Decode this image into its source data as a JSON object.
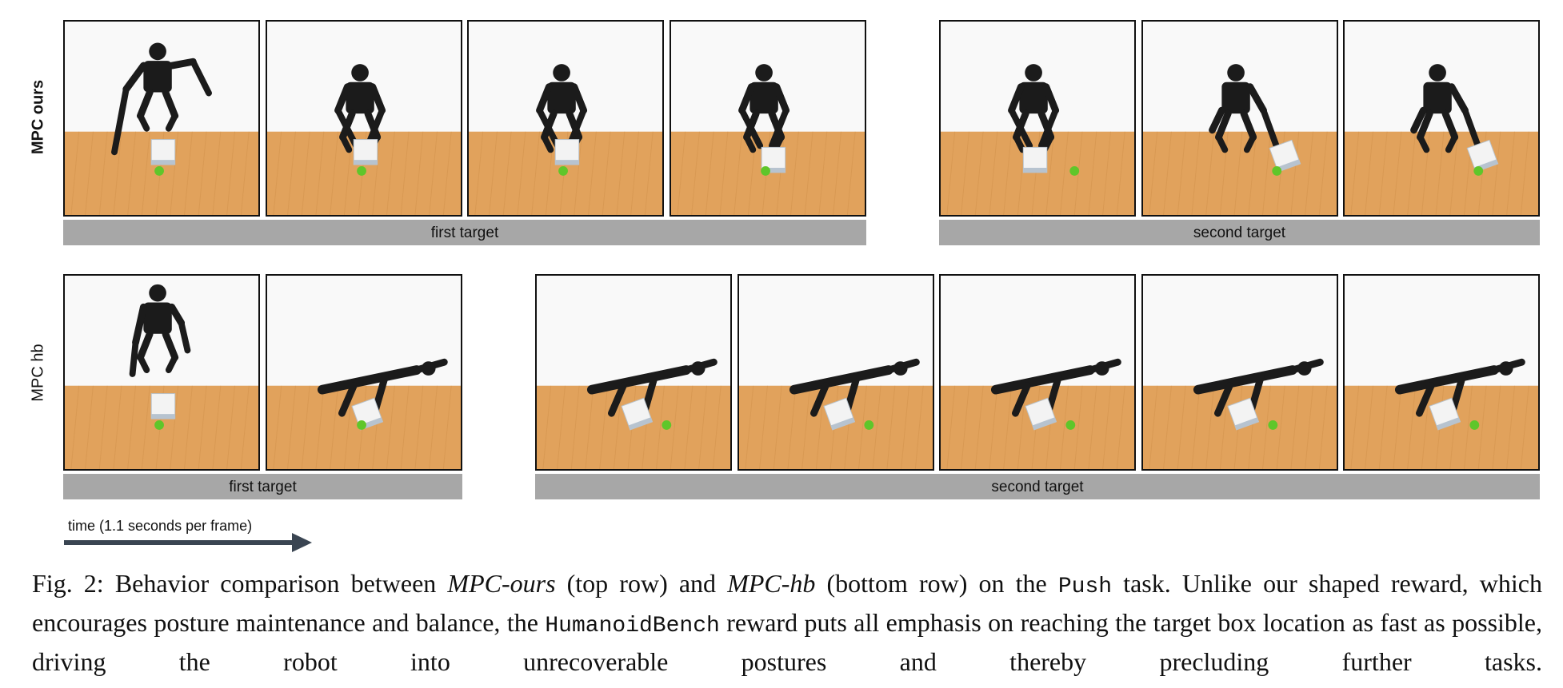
{
  "rows": [
    {
      "label": "MPC ours",
      "groups": [
        {
          "bar_label": "first target",
          "frames": [
            {
              "robot": "standing-arms-out",
              "box": "near"
            },
            {
              "robot": "crouch-reach",
              "box": "near"
            },
            {
              "robot": "crouch-reach",
              "box": "near"
            },
            {
              "robot": "lean-push",
              "box": "pushed"
            }
          ]
        },
        {
          "bar_label": "second target",
          "frames": [
            {
              "robot": "lean-push",
              "box": "left-of-ball"
            },
            {
              "robot": "side-push",
              "box": "right-of-ball"
            },
            {
              "robot": "side-push",
              "box": "far-right"
            }
          ]
        }
      ]
    },
    {
      "label": "MPC hb",
      "groups": [
        {
          "bar_label": "first target",
          "frames": [
            {
              "robot": "standing-tall",
              "box": "near"
            },
            {
              "robot": "fallen",
              "box": "tilted"
            }
          ]
        },
        {
          "bar_label": "second target",
          "frames": [
            {
              "robot": "fallen",
              "box": "tilted"
            },
            {
              "robot": "fallen",
              "box": "tilted"
            },
            {
              "robot": "fallen",
              "box": "tilted"
            },
            {
              "robot": "fallen",
              "box": "tilted"
            },
            {
              "robot": "fallen",
              "box": "tilted"
            }
          ]
        }
      ]
    }
  ],
  "time_label": "time (1.1 seconds per frame)",
  "caption": {
    "prefix": "Fig. 2: Behavior comparison between ",
    "ours": "MPC-ours",
    "mid1": " (top row) and ",
    "hb": "MPC-hb",
    "mid2": " (bottom row) on the ",
    "task": "Push",
    "mid3": " task. Unlike our shaped reward, which encourages posture maintenance and balance, the ",
    "bench": "HumanoidBench",
    "mid4": " reward puts all emphasis on reaching the target box location as fast as possible, driving the robot into unrecoverable postures and thereby precluding further tasks."
  },
  "colors": {
    "floor": "#e1a25c",
    "wall": "#f9f9f9",
    "bar": "#a7a7a7",
    "robot": "#1b1b1b",
    "ball": "#5fc62a",
    "box": "#f3f3f3"
  }
}
